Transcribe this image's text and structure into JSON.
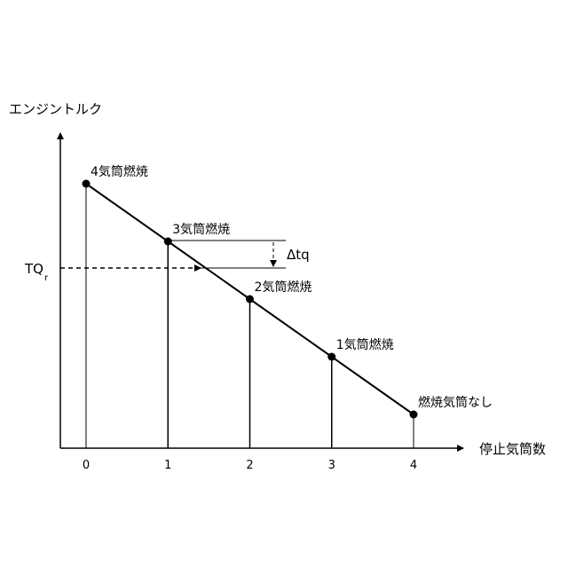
{
  "y_axis_label": "エンジントルク",
  "x_axis_label": "停止気筒数",
  "x_ticks": [
    "0",
    "1",
    "2",
    "3",
    "4"
  ],
  "reference_label": "TQ",
  "reference_subscript": "r",
  "delta_label": "Δtq",
  "points": [
    {
      "stopped": 0,
      "combusting": 4,
      "label": "4気筒燃焼"
    },
    {
      "stopped": 1,
      "combusting": 3,
      "label": "3気筒燃焼"
    },
    {
      "stopped": 2,
      "combusting": 2,
      "label": "2気筒燃焼"
    },
    {
      "stopped": 3,
      "combusting": 1,
      "label": "1気筒燃焼"
    },
    {
      "stopped": 4,
      "combusting": 0,
      "label": "燃焼気筒なし"
    }
  ],
  "colors": {
    "line": "#000000",
    "background": "#ffffff"
  }
}
